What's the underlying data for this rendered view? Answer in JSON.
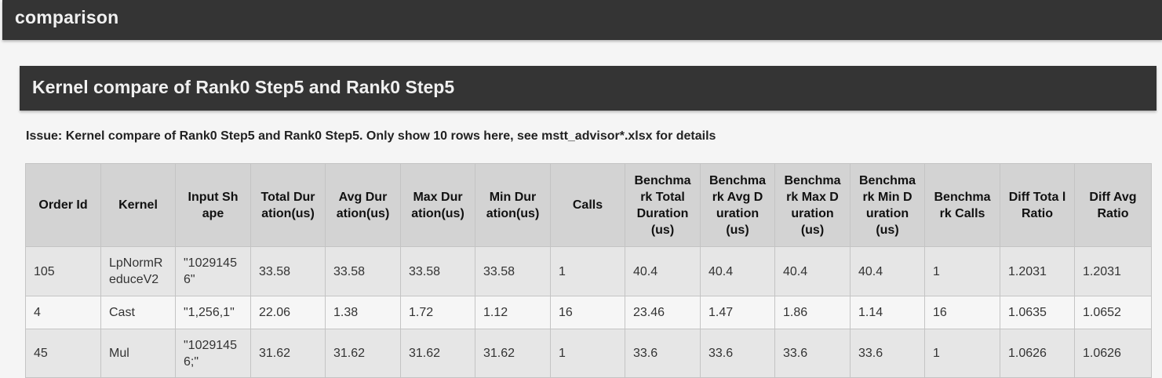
{
  "page": {
    "title": "comparison"
  },
  "section": {
    "title": "Kernel compare of Rank0 Step5 and Rank0 Step5"
  },
  "issue_text": "Issue: Kernel compare of Rank0 Step5 and Rank0 Step5. Only show 10 rows here, see mstt_advisor*.xlsx for details",
  "table": {
    "headers": [
      "Order Id",
      "Kernel",
      "Input Sh ape",
      "Total Dur ation(us)",
      "Avg Dur ation(us)",
      "Max Dur ation(us)",
      "Min Dur ation(us)",
      "Calls",
      "Benchma rk Total Duration (us)",
      "Benchma rk Avg D uration (us)",
      "Benchma rk Max D uration (us)",
      "Benchma rk Min D uration (us)",
      "Benchma rk Calls",
      "Diff Tota l Ratio",
      "Diff Avg Ratio"
    ],
    "rows": [
      [
        "105",
        "LpNormR educeV2",
        "\"1029145 6\"",
        "33.58",
        "33.58",
        "33.58",
        "33.58",
        "1",
        "40.4",
        "40.4",
        "40.4",
        "40.4",
        "1",
        "1.2031",
        "1.2031"
      ],
      [
        "4",
        "Cast",
        "\"1,256,1\"",
        "22.06",
        "1.38",
        "1.72",
        "1.12",
        "16",
        "23.46",
        "1.47",
        "1.86",
        "1.14",
        "16",
        "1.0635",
        "1.0652"
      ],
      [
        "45",
        "Mul",
        "\"1029145 6;\"",
        "31.62",
        "31.62",
        "31.62",
        "31.62",
        "1",
        "33.6",
        "33.6",
        "33.6",
        "33.6",
        "1",
        "1.0626",
        "1.0626"
      ]
    ]
  }
}
